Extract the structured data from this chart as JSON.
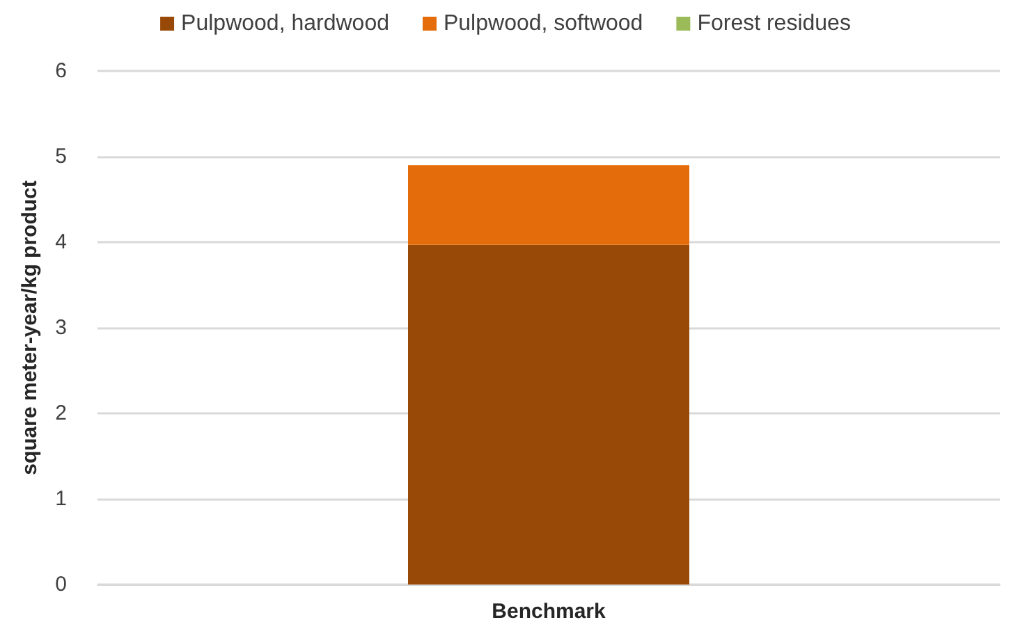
{
  "chart_data": {
    "type": "bar",
    "stacked": true,
    "ylabel": "square meter-year/kg product",
    "categories": [
      "Benchmark"
    ],
    "series": [
      {
        "name": "Pulpwood, hardwood",
        "color": "#984807",
        "values": [
          3.97
        ]
      },
      {
        "name": "Pulpwood, softwood",
        "color": "#e46c0a",
        "values": [
          0.93
        ]
      },
      {
        "name": "Forest residues",
        "color": "#9bbb59",
        "values": [
          0
        ]
      }
    ],
    "ylim": [
      0,
      6
    ],
    "yticks": [
      0,
      1,
      2,
      3,
      4,
      5,
      6
    ],
    "grid": "y",
    "legend": "top"
  }
}
